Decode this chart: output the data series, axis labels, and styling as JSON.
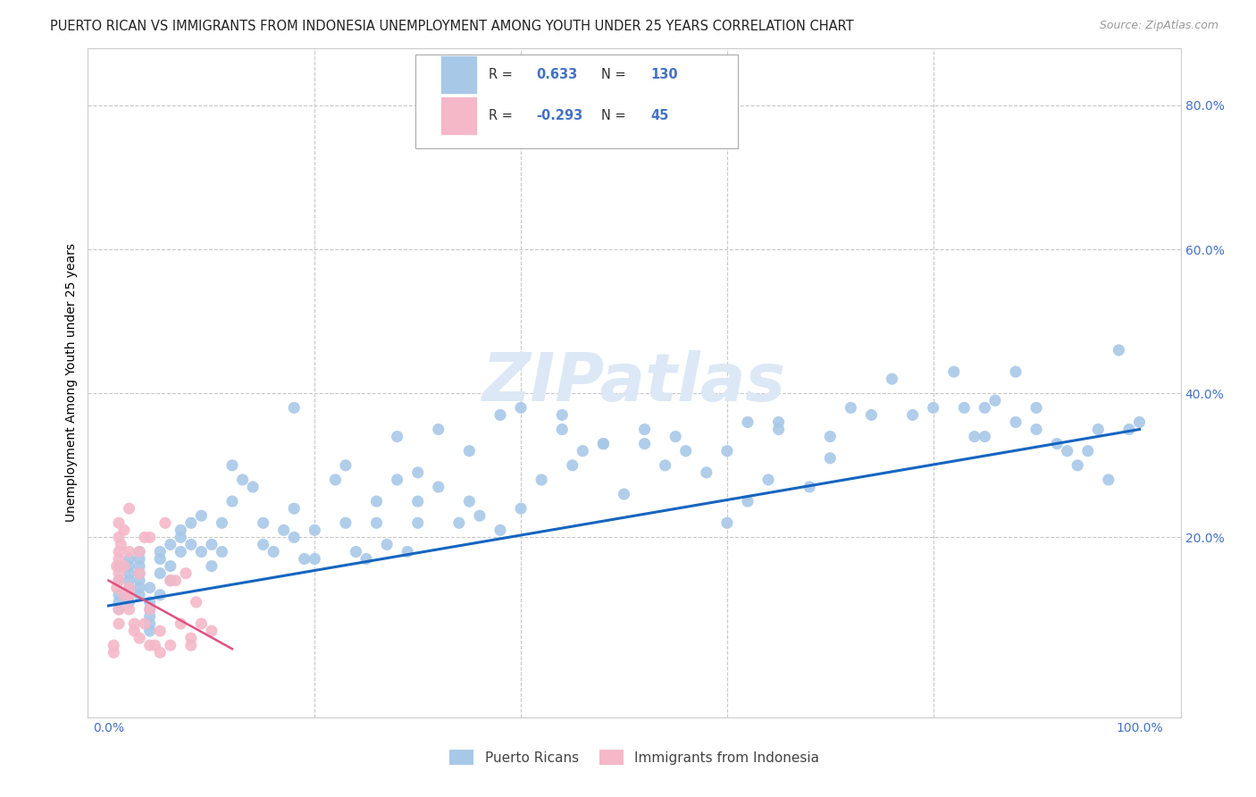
{
  "title": "PUERTO RICAN VS IMMIGRANTS FROM INDONESIA UNEMPLOYMENT AMONG YOUTH UNDER 25 YEARS CORRELATION CHART",
  "source": "Source: ZipAtlas.com",
  "ylabel": "Unemployment Among Youth under 25 years",
  "r_blue": 0.633,
  "n_blue": 130,
  "r_pink": -0.293,
  "n_pink": 45,
  "blue_color": "#a8c8e8",
  "pink_color": "#f4b8c8",
  "trend_blue": "#1565c0",
  "trend_pink": "#e05080",
  "watermark": "ZIPatlas",
  "watermark_color": "#dce8f5",
  "legend_entries": [
    "Puerto Ricans",
    "Immigrants from Indonesia"
  ],
  "blue_scatter_x": [
    1,
    1,
    1,
    1,
    1,
    2,
    2,
    2,
    2,
    2,
    2,
    2,
    2,
    3,
    3,
    3,
    3,
    3,
    3,
    3,
    4,
    4,
    4,
    4,
    4,
    4,
    5,
    5,
    5,
    5,
    6,
    6,
    6,
    7,
    7,
    7,
    8,
    8,
    9,
    9,
    10,
    10,
    11,
    11,
    12,
    12,
    13,
    14,
    15,
    15,
    16,
    17,
    18,
    18,
    19,
    20,
    22,
    23,
    24,
    25,
    26,
    27,
    28,
    29,
    30,
    30,
    32,
    34,
    35,
    36,
    38,
    40,
    42,
    44,
    45,
    46,
    48,
    50,
    52,
    54,
    56,
    58,
    60,
    60,
    62,
    64,
    65,
    68,
    70,
    72,
    74,
    76,
    78,
    80,
    82,
    83,
    84,
    86,
    88,
    88,
    90,
    90,
    92,
    93,
    94,
    95,
    96,
    97,
    98,
    99,
    100,
    85,
    85,
    70,
    65,
    62,
    55,
    52,
    48,
    44,
    40,
    38,
    35,
    32,
    30,
    28,
    26,
    23,
    20,
    18
  ],
  "blue_scatter_y": [
    10,
    12,
    14,
    16,
    11,
    13,
    15,
    17,
    12,
    14,
    16,
    11,
    13,
    14,
    16,
    18,
    12,
    15,
    17,
    13,
    9,
    11,
    7,
    13,
    10,
    8,
    17,
    15,
    18,
    12,
    19,
    14,
    16,
    21,
    18,
    20,
    22,
    19,
    23,
    18,
    19,
    16,
    22,
    18,
    30,
    25,
    28,
    27,
    19,
    22,
    18,
    21,
    24,
    20,
    17,
    21,
    28,
    22,
    18,
    17,
    22,
    19,
    28,
    18,
    22,
    25,
    27,
    22,
    25,
    23,
    21,
    24,
    28,
    37,
    30,
    32,
    33,
    26,
    33,
    30,
    32,
    29,
    22,
    32,
    25,
    28,
    36,
    27,
    34,
    38,
    37,
    42,
    37,
    38,
    43,
    38,
    34,
    39,
    36,
    43,
    38,
    35,
    33,
    32,
    30,
    32,
    35,
    28,
    46,
    35,
    36,
    38,
    34,
    31,
    35,
    36,
    34,
    35,
    33,
    35,
    38,
    37,
    32,
    35,
    29,
    34,
    25,
    30,
    17,
    38
  ],
  "pink_scatter_x": [
    0.5,
    0.5,
    0.8,
    0.8,
    1,
    1,
    1,
    1,
    1,
    1,
    1,
    1,
    1.2,
    1.5,
    1.5,
    1.5,
    2,
    2,
    2,
    2,
    2.5,
    2.5,
    3,
    3,
    3.5,
    3.5,
    4,
    4,
    4.5,
    5,
    5,
    5.5,
    6,
    6.5,
    7,
    7.5,
    8,
    8.5,
    9,
    10,
    2,
    3,
    4,
    6,
    8
  ],
  "pink_scatter_y": [
    5,
    4,
    13,
    16,
    10,
    14,
    20,
    17,
    15,
    22,
    18,
    8,
    19,
    21,
    12,
    16,
    18,
    13,
    10,
    24,
    8,
    7,
    6,
    15,
    8,
    20,
    10,
    5,
    5,
    7,
    4,
    22,
    5,
    14,
    8,
    15,
    6,
    11,
    8,
    7,
    12,
    18,
    20,
    14,
    5
  ],
  "blue_trend_x0": 0,
  "blue_trend_y0": 10.5,
  "blue_trend_x1": 100,
  "blue_trend_y1": 35.0,
  "pink_trend_x0": 0,
  "pink_trend_y0": 14.0,
  "pink_trend_x1": 12,
  "pink_trend_y1": 4.5,
  "xlim": [
    -2,
    104
  ],
  "ylim": [
    -5,
    88
  ],
  "right_yticks": [
    0,
    20,
    40,
    60,
    80
  ],
  "right_ytick_labels": [
    "",
    "20.0%",
    "40.0%",
    "60.0%",
    "80.0%"
  ],
  "left_yticks": [
    0,
    20,
    40,
    60,
    80
  ],
  "left_ytick_labels": [
    "",
    "",
    "",
    "",
    ""
  ],
  "xtick_labels_left": "0.0%",
  "xtick_labels_right": "100.0%",
  "tick_color": "#4472c4",
  "grid_color": "#c8c8c8",
  "background_color": "#ffffff",
  "title_fontsize": 10.5,
  "axis_label_fontsize": 10,
  "tick_fontsize": 10,
  "source_fontsize": 9
}
